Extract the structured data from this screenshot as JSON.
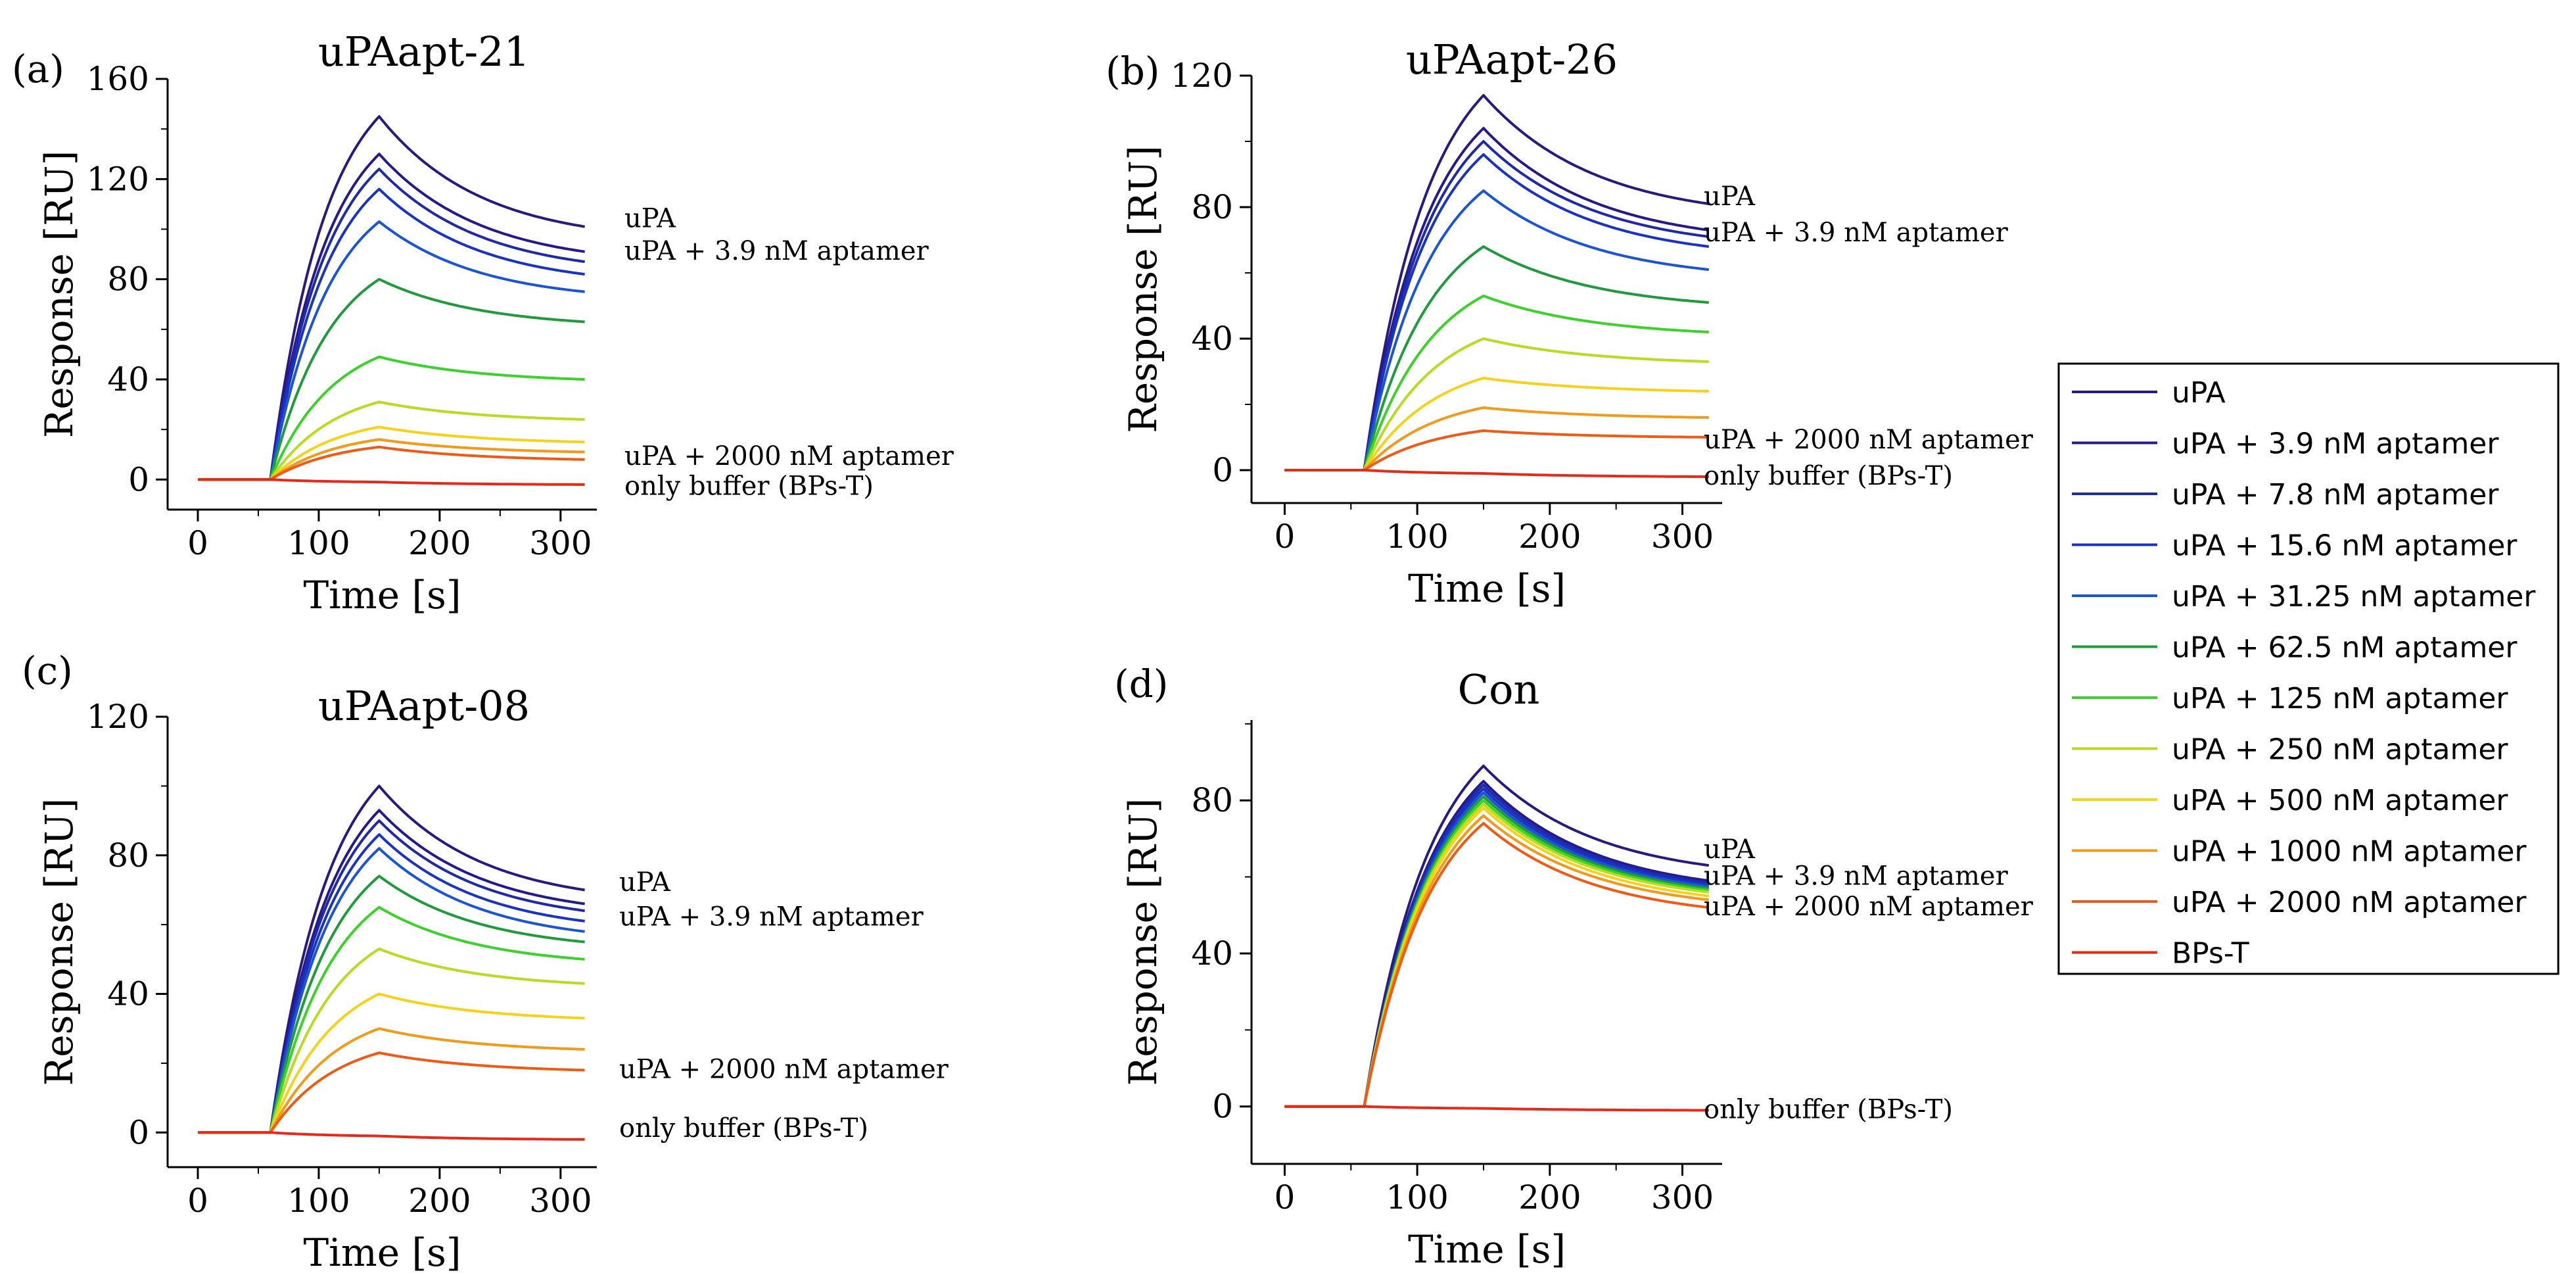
{
  "legend": {
    "entries": [
      {
        "label": "uPA",
        "color": "#2a1a80"
      },
      {
        "label": "uPA + 3.9 nM aptamer",
        "color": "#251a8c"
      },
      {
        "label": "uPA + 7.8 nM aptamer",
        "color": "#1f2aa8"
      },
      {
        "label": "uPA + 15.6 nM aptamer",
        "color": "#1a33c4"
      },
      {
        "label": "uPA + 31.25 nM aptamer",
        "color": "#1b55d6"
      },
      {
        "label": "uPA + 62.5 nM aptamer",
        "color": "#1f9a3c"
      },
      {
        "label": "uPA + 125 nM aptamer",
        "color": "#3bd22a"
      },
      {
        "label": "uPA + 250 nM aptamer",
        "color": "#b8dc22"
      },
      {
        "label": "uPA + 500 nM aptamer",
        "color": "#f5d31a"
      },
      {
        "label": "uPA + 1000 nM aptamer",
        "color": "#f29a1a"
      },
      {
        "label": "uPA + 2000 nM aptamer",
        "color": "#f05a14"
      },
      {
        "label": "BPs-T",
        "color": "#e62a1a"
      }
    ]
  },
  "chart_data": [
    {
      "type": "line",
      "letter": "(a)",
      "title": "uPAapt-21",
      "xlabel": "Time [s]",
      "ylabel": "Response [RU]",
      "xlim": [
        -25,
        330
      ],
      "ylim": [
        -12,
        160
      ],
      "xticks": [
        0,
        100,
        200,
        300
      ],
      "yticks": [
        0,
        40,
        80,
        120,
        160
      ],
      "x_points": [
        0,
        60,
        150,
        320
      ],
      "series": [
        {
          "name": "uPA",
          "values": [
            0,
            0,
            145,
            101
          ]
        },
        {
          "name": "uPA + 3.9 nM aptamer",
          "values": [
            0,
            0,
            130,
            91
          ]
        },
        {
          "name": "uPA + 7.8 nM aptamer",
          "values": [
            0,
            0,
            124,
            87
          ]
        },
        {
          "name": "uPA + 15.6 nM aptamer",
          "values": [
            0,
            0,
            116,
            82
          ]
        },
        {
          "name": "uPA + 31.25 nM aptamer",
          "values": [
            0,
            0,
            103,
            75
          ]
        },
        {
          "name": "uPA + 62.5 nM aptamer",
          "values": [
            0,
            0,
            80,
            63
          ]
        },
        {
          "name": "uPA + 125 nM aptamer",
          "values": [
            0,
            0,
            49,
            40
          ]
        },
        {
          "name": "uPA + 250 nM aptamer",
          "values": [
            0,
            0,
            31,
            24
          ]
        },
        {
          "name": "uPA + 500 nM aptamer",
          "values": [
            0,
            0,
            21,
            15
          ]
        },
        {
          "name": "uPA + 1000 nM aptamer",
          "values": [
            0,
            0,
            16,
            11
          ]
        },
        {
          "name": "uPA + 2000 nM aptamer",
          "values": [
            0,
            0,
            13,
            8
          ]
        },
        {
          "name": "BPs-T",
          "values": [
            0,
            0,
            -1,
            -2
          ]
        }
      ],
      "annotations": [
        {
          "text": "uPA",
          "y": 104
        },
        {
          "text": "uPA + 3.9 nM aptamer",
          "y": 91
        },
        {
          "text": "uPA + 2000 nM aptamer",
          "y": 9
        },
        {
          "text": "only buffer (BPs-T)",
          "y": -3
        }
      ]
    },
    {
      "type": "line",
      "letter": "(b)",
      "title": "uPAapt-26",
      "xlabel": "Time [s]",
      "ylabel": "Response [RU]",
      "xlim": [
        -25,
        330
      ],
      "ylim": [
        -10,
        120
      ],
      "xticks": [
        0,
        100,
        200,
        300
      ],
      "yticks": [
        0,
        40,
        80,
        120
      ],
      "x_points": [
        0,
        60,
        150,
        320
      ],
      "series": [
        {
          "name": "uPA",
          "values": [
            0,
            0,
            114,
            81
          ]
        },
        {
          "name": "uPA + 3.9 nM aptamer",
          "values": [
            0,
            0,
            104,
            73
          ]
        },
        {
          "name": "uPA + 7.8 nM aptamer",
          "values": [
            0,
            0,
            100,
            71
          ]
        },
        {
          "name": "uPA + 15.6 nM aptamer",
          "values": [
            0,
            0,
            96,
            68
          ]
        },
        {
          "name": "uPA + 31.25 nM aptamer",
          "values": [
            0,
            0,
            85,
            61
          ]
        },
        {
          "name": "uPA + 62.5 nM aptamer",
          "values": [
            0,
            0,
            68,
            51
          ]
        },
        {
          "name": "uPA + 125 nM aptamer",
          "values": [
            0,
            0,
            53,
            42
          ]
        },
        {
          "name": "uPA + 250 nM aptamer",
          "values": [
            0,
            0,
            40,
            33
          ]
        },
        {
          "name": "uPA + 500 nM aptamer",
          "values": [
            0,
            0,
            28,
            24
          ]
        },
        {
          "name": "uPA + 1000 nM aptamer",
          "values": [
            0,
            0,
            19,
            16
          ]
        },
        {
          "name": "uPA + 2000 nM aptamer",
          "values": [
            0,
            0,
            12,
            10
          ]
        },
        {
          "name": "BPs-T",
          "values": [
            0,
            0,
            -1,
            -2
          ]
        }
      ],
      "annotations": [
        {
          "text": "uPA",
          "y": 83
        },
        {
          "text": "uPA + 3.9 nM aptamer",
          "y": 72
        },
        {
          "text": "uPA + 2000 nM aptamer",
          "y": 9
        },
        {
          "text": "only buffer (BPs-T)",
          "y": -2
        }
      ]
    },
    {
      "type": "line",
      "letter": "(c)",
      "title": "uPAapt-08",
      "xlabel": "Time [s]",
      "ylabel": "Response [RU]",
      "xlim": [
        -25,
        330
      ],
      "ylim": [
        -10,
        120
      ],
      "xticks": [
        0,
        100,
        200,
        300
      ],
      "yticks": [
        0,
        40,
        80,
        120
      ],
      "x_points": [
        0,
        60,
        150,
        320
      ],
      "series": [
        {
          "name": "uPA",
          "values": [
            0,
            0,
            100,
            70
          ]
        },
        {
          "name": "uPA + 3.9 nM aptamer",
          "values": [
            0,
            0,
            93,
            66
          ]
        },
        {
          "name": "uPA + 7.8 nM aptamer",
          "values": [
            0,
            0,
            90,
            64
          ]
        },
        {
          "name": "uPA + 15.6 nM aptamer",
          "values": [
            0,
            0,
            86,
            61
          ]
        },
        {
          "name": "uPA + 31.25 nM aptamer",
          "values": [
            0,
            0,
            82,
            58
          ]
        },
        {
          "name": "uPA + 62.5 nM aptamer",
          "values": [
            0,
            0,
            74,
            55
          ]
        },
        {
          "name": "uPA + 125 nM aptamer",
          "values": [
            0,
            0,
            65,
            50
          ]
        },
        {
          "name": "uPA + 250 nM aptamer",
          "values": [
            0,
            0,
            53,
            43
          ]
        },
        {
          "name": "uPA + 500 nM aptamer",
          "values": [
            0,
            0,
            40,
            33
          ]
        },
        {
          "name": "uPA + 1000 nM aptamer",
          "values": [
            0,
            0,
            30,
            24
          ]
        },
        {
          "name": "uPA + 2000 nM aptamer",
          "values": [
            0,
            0,
            23,
            18
          ]
        },
        {
          "name": "BPs-T",
          "values": [
            0,
            0,
            -1,
            -2
          ]
        }
      ],
      "annotations": [
        {
          "text": "uPA",
          "y": 72
        },
        {
          "text": "uPA + 3.9 nM aptamer",
          "y": 62
        },
        {
          "text": "uPA + 2000 nM aptamer",
          "y": 18
        },
        {
          "text": "only buffer (BPs-T)",
          "y": 1
        }
      ]
    },
    {
      "type": "line",
      "letter": "(d)",
      "title": "Con",
      "xlabel": "Time [s]",
      "ylabel": "Response [RU]",
      "xlim": [
        -25,
        330
      ],
      "ylim": [
        -15,
        101
      ],
      "xticks": [
        0,
        100,
        200,
        300
      ],
      "yticks": [
        0,
        40,
        80
      ],
      "x_points": [
        0,
        60,
        150,
        320
      ],
      "series": [
        {
          "name": "uPA",
          "values": [
            0,
            0,
            89,
            63
          ]
        },
        {
          "name": "uPA + 3.9 nM aptamer",
          "values": [
            0,
            0,
            85,
            59
          ]
        },
        {
          "name": "uPA + 7.8 nM aptamer",
          "values": [
            0,
            0,
            84,
            58.5
          ]
        },
        {
          "name": "uPA + 15.6 nM aptamer",
          "values": [
            0,
            0,
            83,
            58
          ]
        },
        {
          "name": "uPA + 31.25 nM aptamer",
          "values": [
            0,
            0,
            82,
            57.5
          ]
        },
        {
          "name": "uPA + 62.5 nM aptamer",
          "values": [
            0,
            0,
            81,
            57
          ]
        },
        {
          "name": "uPA + 125 nM aptamer",
          "values": [
            0,
            0,
            80,
            56.5
          ]
        },
        {
          "name": "uPA + 250 nM aptamer",
          "values": [
            0,
            0,
            79,
            56
          ]
        },
        {
          "name": "uPA + 500 nM aptamer",
          "values": [
            0,
            0,
            78,
            55
          ]
        },
        {
          "name": "uPA + 1000 nM aptamer",
          "values": [
            0,
            0,
            76,
            54
          ]
        },
        {
          "name": "uPA + 2000 nM aptamer",
          "values": [
            0,
            0,
            74,
            52
          ]
        },
        {
          "name": "BPs-T",
          "values": [
            0,
            0,
            -0.5,
            -1
          ]
        }
      ],
      "annotations": [
        {
          "text": "uPA",
          "y": 67
        },
        {
          "text": "uPA + 3.9 nM aptamer",
          "y": 60
        },
        {
          "text": "uPA + 2000 nM aptamer",
          "y": 52
        },
        {
          "text": "only buffer (BPs-T)",
          "y": -1
        }
      ]
    }
  ]
}
